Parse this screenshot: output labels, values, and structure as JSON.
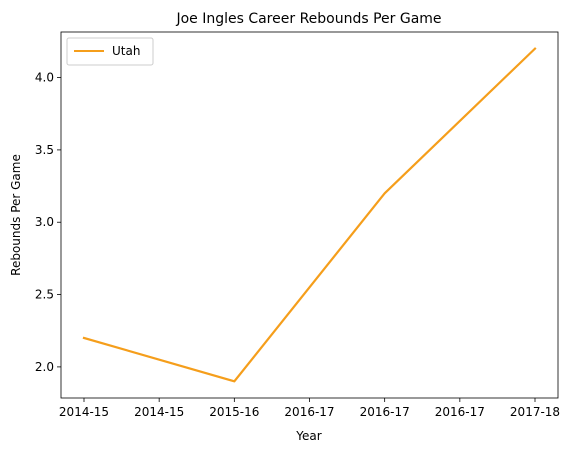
{
  "chart_data": {
    "type": "line",
    "title": "Joe Ingles Career Rebounds Per Game",
    "xlabel": "Year",
    "ylabel": "Rebounds Per Game",
    "x_tick_labels": [
      "2014-15",
      "2014-15",
      "2015-16",
      "2016-17",
      "2016-17",
      "2016-17",
      "2017-18"
    ],
    "y_ticks": [
      2.0,
      2.5,
      3.0,
      3.5,
      4.0
    ],
    "y_tick_labels": [
      "2.0",
      "2.5",
      "3.0",
      "3.5",
      "4.0"
    ],
    "ylim": [
      1.785,
      4.315
    ],
    "grid": false,
    "legend_position": "upper-left",
    "series": [
      {
        "name": "Utah",
        "color": "#f59e1b",
        "categories": [
          "2014-15",
          "2015-16",
          "2016-17",
          "2017-18"
        ],
        "values": [
          2.2,
          1.9,
          3.2,
          4.2
        ]
      }
    ]
  }
}
